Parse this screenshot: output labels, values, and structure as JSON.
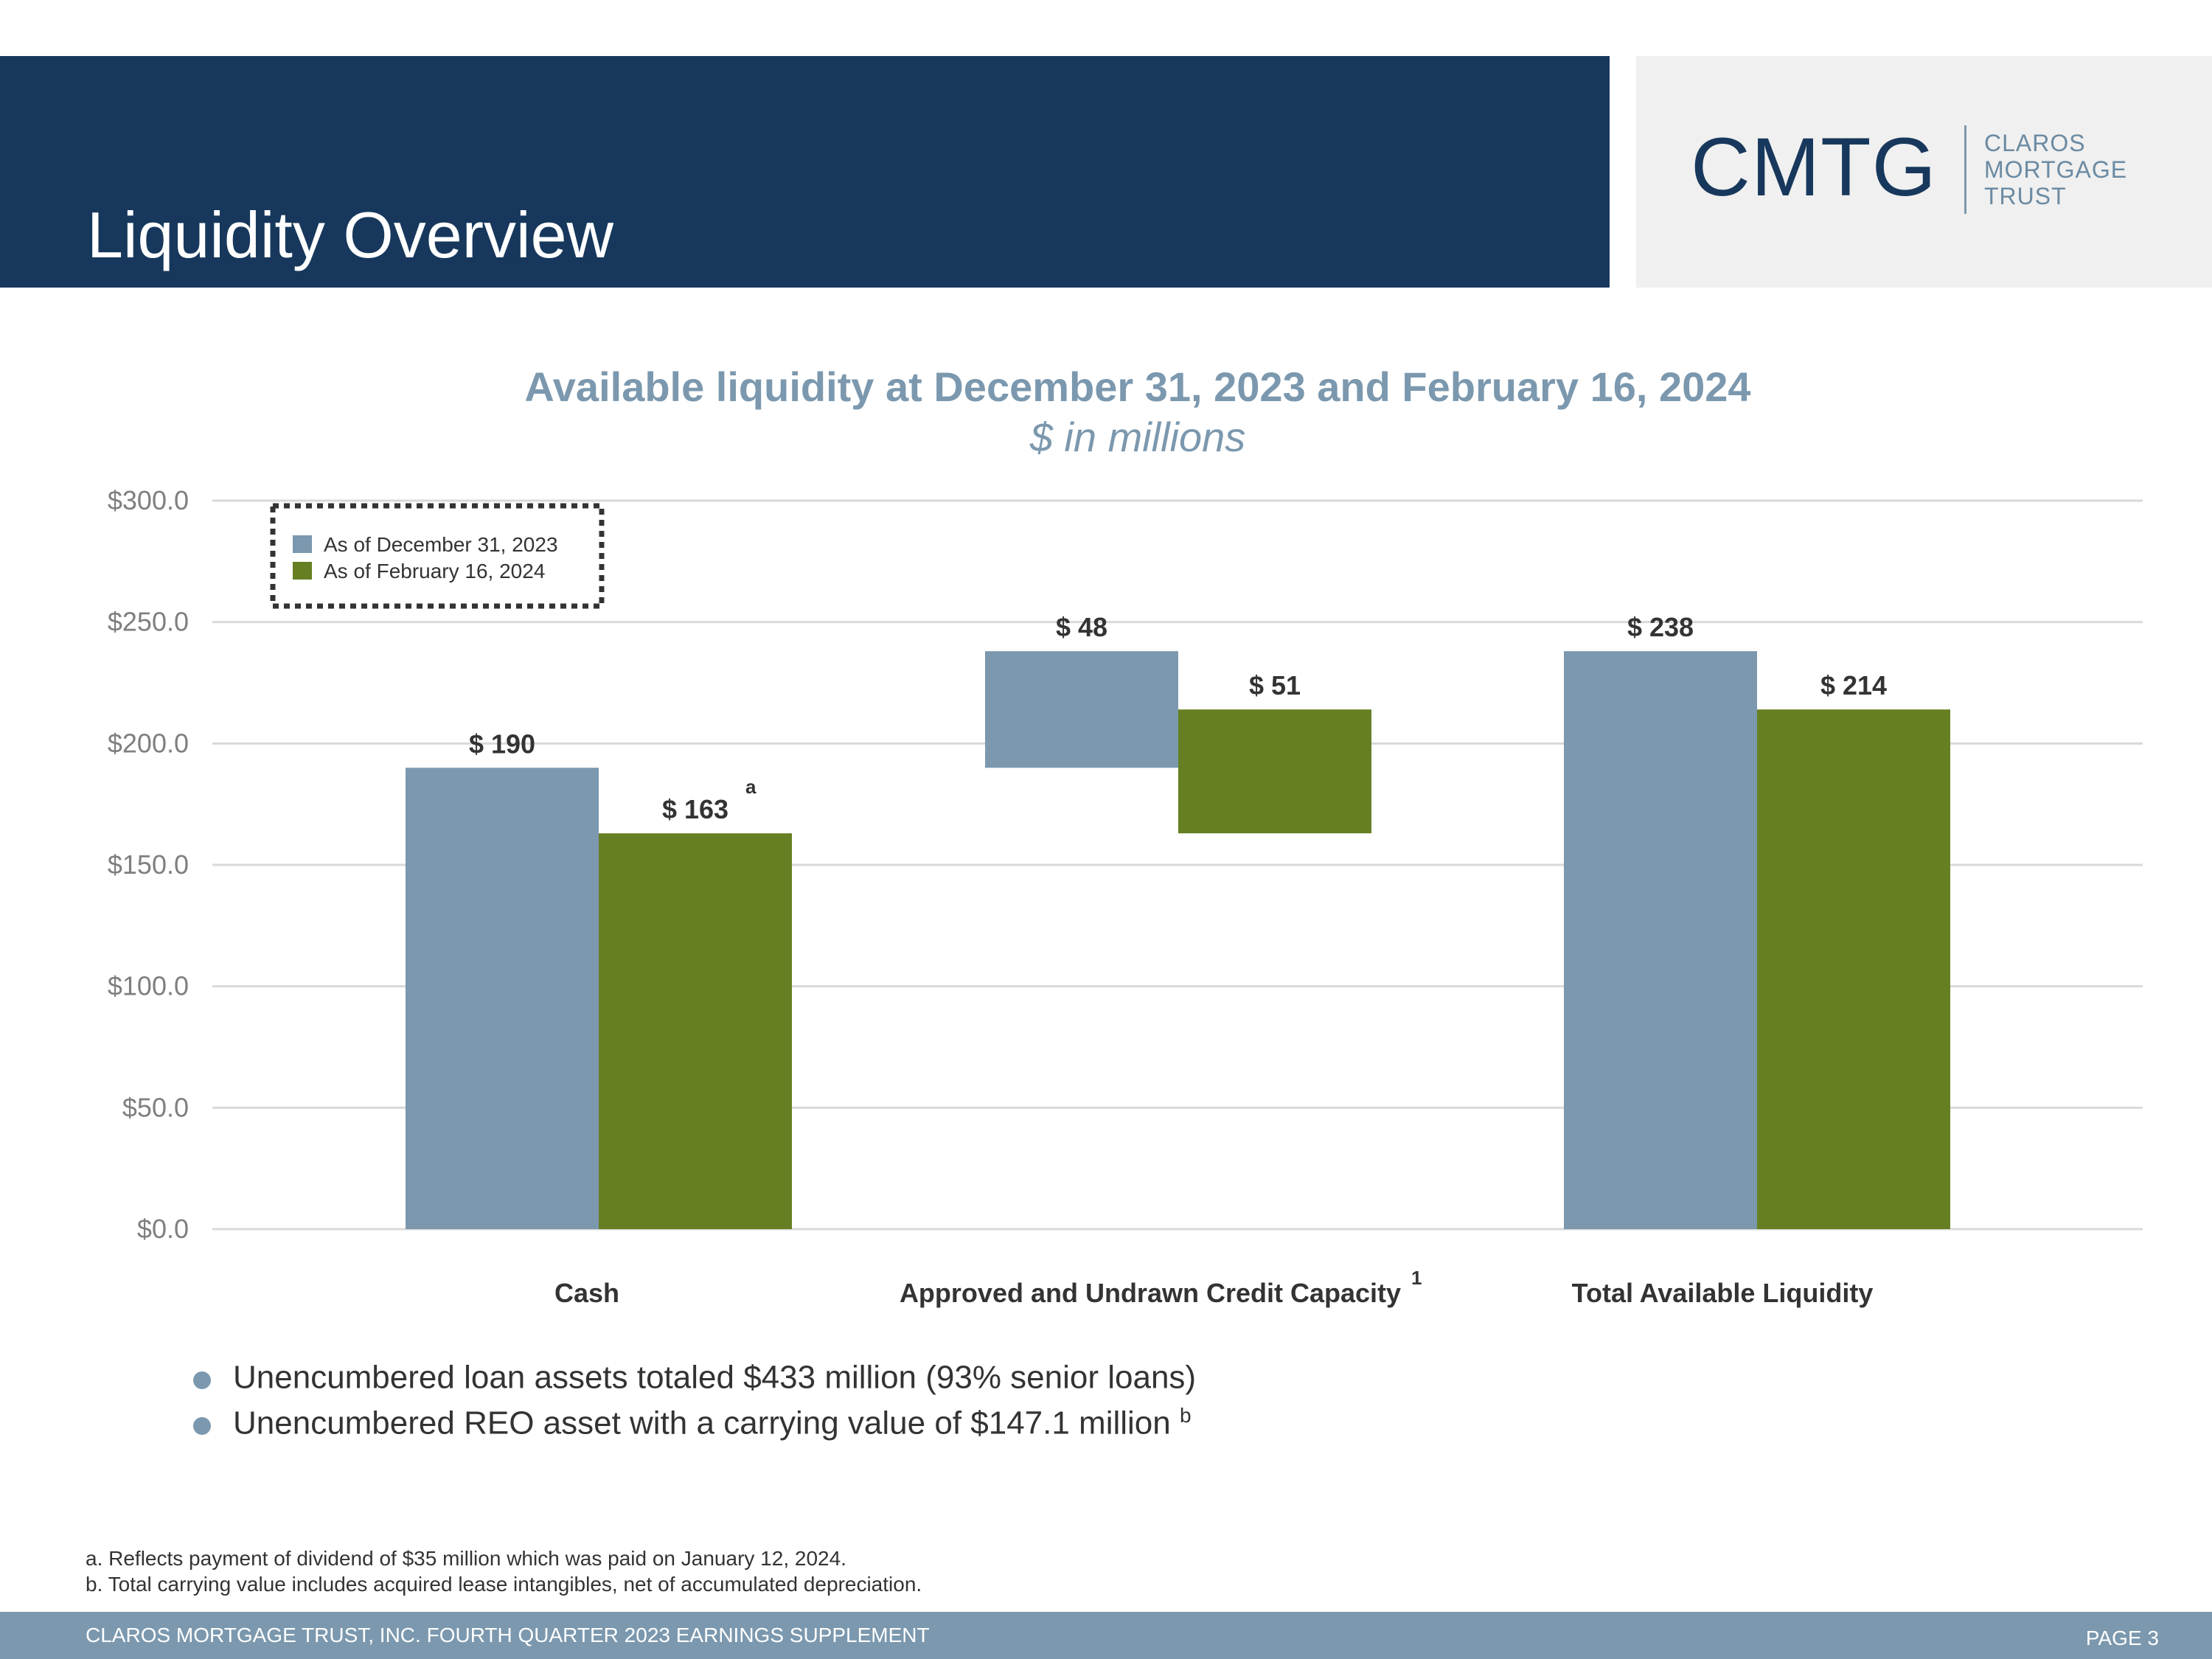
{
  "header": {
    "title": "Liquidity Overview"
  },
  "logo": {
    "mark": "CMTG",
    "lines": [
      "CLAROS",
      "MORTGAGE",
      "TRUST"
    ]
  },
  "chart_title": "Available liquidity at December 31, 2023 and February 16, 2024",
  "chart_subtitle": "$ in millions",
  "chart_data": {
    "type": "bar",
    "subtype": "waterfall",
    "title": "Available liquidity at December 31, 2023 and February 16, 2024",
    "subtitle": "$ in millions",
    "categories": [
      "Cash",
      "Approved and Undrawn Credit Capacity",
      "Total Available Liquidity"
    ],
    "category_superscripts": [
      "",
      "1",
      ""
    ],
    "ylim": [
      0,
      300
    ],
    "yticks": [
      0,
      50,
      100,
      150,
      200,
      250,
      300
    ],
    "ytick_labels": [
      "$0.0",
      "$50.0",
      "$100.0",
      "$150.0",
      "$200.0",
      "$250.0",
      "$300.0"
    ],
    "grid": true,
    "legend_position": "top-left",
    "series": [
      {
        "name": "As of December 31, 2023",
        "color": "#7b98ae",
        "values": [
          190,
          48,
          238
        ],
        "bar_bottoms": [
          0,
          190,
          0
        ],
        "labels": [
          "$ 190",
          "$ 48",
          "$ 238"
        ],
        "label_superscripts": [
          "",
          "",
          ""
        ]
      },
      {
        "name": "As of February 16, 2024",
        "color": "#667f22",
        "values": [
          163,
          51,
          214
        ],
        "bar_bottoms": [
          0,
          163,
          0
        ],
        "labels": [
          "$ 163",
          "$ 51",
          "$ 214"
        ],
        "label_superscripts": [
          "a",
          "",
          ""
        ]
      }
    ]
  },
  "bullets": [
    {
      "text": "Unencumbered loan assets totaled $433 million (93% senior loans)",
      "sup": ""
    },
    {
      "text": "Unencumbered REO asset with a carrying value of $147.1 million ",
      "sup": "b"
    }
  ],
  "footnotes": [
    "a. Reflects payment of dividend of $35 million which was paid on January 12, 2024.",
    "b. Total carrying value includes acquired lease intangibles, net of accumulated depreciation."
  ],
  "footer": {
    "text": "CLAROS MORTGAGE TRUST, INC. FOURTH QUARTER 2023 EARNINGS SUPPLEMENT",
    "page": "PAGE 3"
  }
}
